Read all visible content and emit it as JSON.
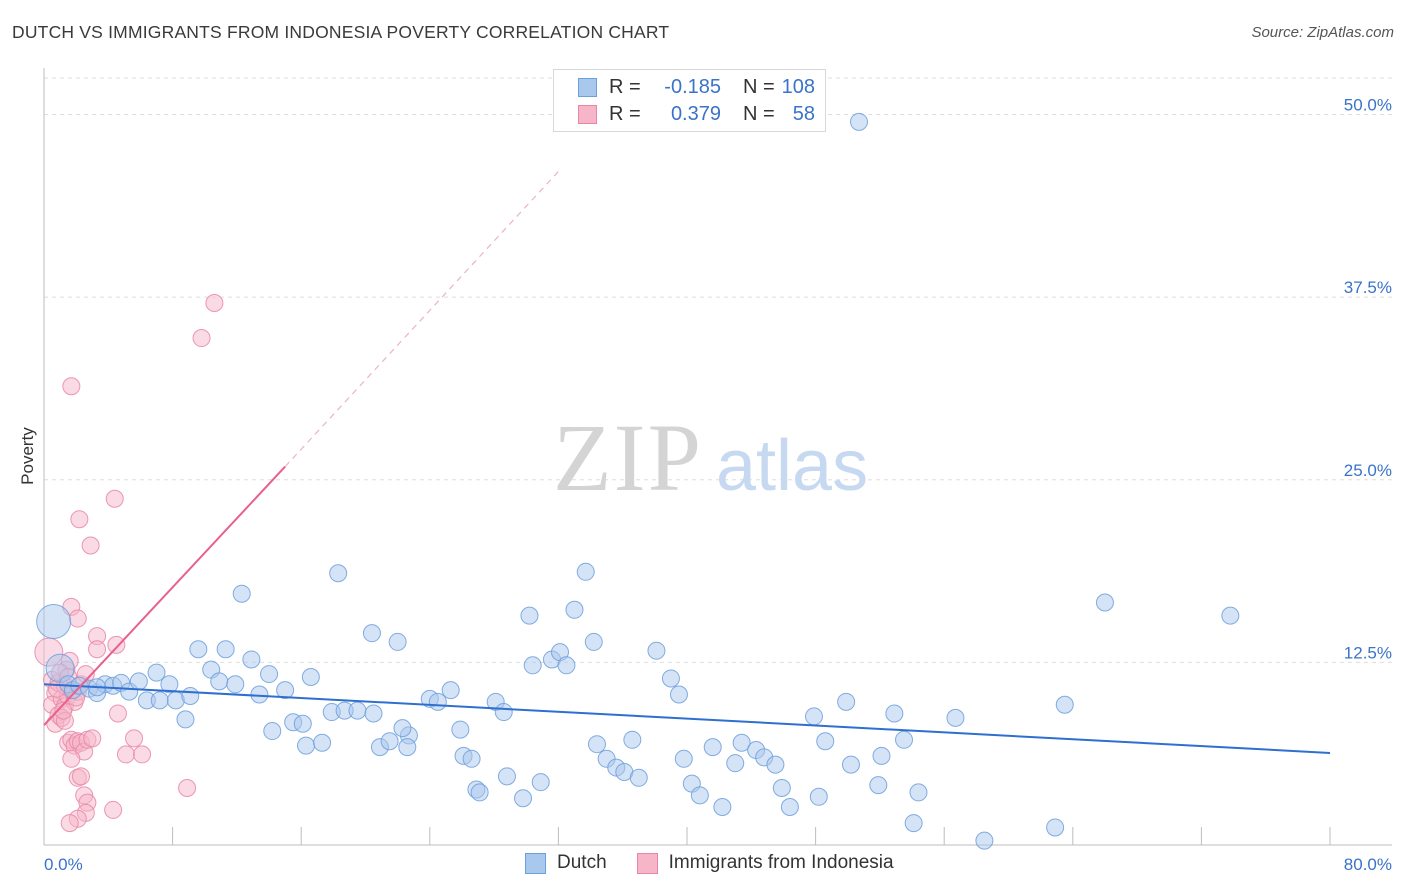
{
  "header": {
    "title": "DUTCH VS IMMIGRANTS FROM INDONESIA POVERTY CORRELATION CHART",
    "source": "Source: ZipAtlas.com"
  },
  "legend": {
    "rows": [
      {
        "r_label": "R =",
        "r_value": "-0.185",
        "n_label": "N =",
        "n_value": "108"
      },
      {
        "r_label": "R =",
        "r_value": "0.379",
        "n_label": "N =",
        "n_value": "58"
      }
    ],
    "series": [
      "Dutch",
      "Immigrants from Indonesia"
    ]
  },
  "colors": {
    "blue_fill": "#a9c8ee",
    "blue_stroke": "#6d9fdc",
    "blue_line": "#2f6fcf",
    "pink_fill": "#f6b5c9",
    "pink_stroke": "#e986a6",
    "pink_line": "#e8608c",
    "axis_text": "#3a73c8"
  },
  "chart_data": {
    "type": "scatter",
    "title": "DUTCH VS IMMIGRANTS FROM INDONESIA POVERTY CORRELATION CHART",
    "xlabel": "",
    "ylabel": "Poverty",
    "xlim": [
      0,
      80
    ],
    "ylim": [
      0,
      52.5
    ],
    "x_tick_labels": [
      "0.0%",
      "80.0%"
    ],
    "y_ticks": [
      12.5,
      25.0,
      37.5,
      50.0
    ],
    "y_tick_labels": [
      "12.5%",
      "25.0%",
      "37.5%",
      "50.0%"
    ],
    "watermark": {
      "zip": "ZIP",
      "atlas": "atlas"
    },
    "series": [
      {
        "name": "Dutch",
        "r": -0.185,
        "n": 108,
        "trend": {
          "x0": 0,
          "y0": 11.0,
          "x1": 80,
          "y1": 6.3
        },
        "points": [
          [
            0.6,
            15.3,
            3
          ],
          [
            1.0,
            12.1,
            2
          ],
          [
            1.5,
            11.0,
            1
          ],
          [
            1.8,
            10.6,
            1
          ],
          [
            2.2,
            10.9,
            1
          ],
          [
            2.8,
            10.7,
            1
          ],
          [
            3.3,
            10.4,
            1
          ],
          [
            3.8,
            11.0,
            1
          ],
          [
            4.3,
            10.9,
            1
          ],
          [
            4.8,
            11.1,
            1
          ],
          [
            5.3,
            10.5,
            1
          ],
          [
            5.9,
            11.2,
            1
          ],
          [
            6.4,
            9.9,
            1
          ],
          [
            7.2,
            9.9,
            1
          ],
          [
            8.2,
            9.9,
            1
          ],
          [
            9.1,
            10.2,
            1
          ],
          [
            3.3,
            10.8,
            1
          ],
          [
            7.0,
            11.8,
            1
          ],
          [
            9.6,
            13.4,
            1
          ],
          [
            10.4,
            12.0,
            1
          ],
          [
            11.3,
            13.4,
            1
          ],
          [
            12.9,
            12.7,
            1
          ],
          [
            14.0,
            11.7,
            1
          ],
          [
            10.9,
            11.2,
            1
          ],
          [
            11.9,
            11.0,
            1
          ],
          [
            13.4,
            10.3,
            1
          ],
          [
            15.0,
            10.6,
            1
          ],
          [
            16.6,
            11.5,
            1
          ],
          [
            7.8,
            11.0,
            1
          ],
          [
            8.8,
            8.6,
            1
          ],
          [
            12.3,
            17.2,
            1
          ],
          [
            14.2,
            7.8,
            1
          ],
          [
            15.5,
            8.4,
            1
          ],
          [
            16.1,
            8.3,
            1
          ],
          [
            16.3,
            6.8,
            1
          ],
          [
            17.3,
            7.0,
            1
          ],
          [
            17.9,
            9.1,
            1
          ],
          [
            18.7,
            9.2,
            1
          ],
          [
            19.5,
            9.2,
            1
          ],
          [
            20.5,
            9.0,
            1
          ],
          [
            20.4,
            14.5,
            1
          ],
          [
            22.0,
            13.9,
            1
          ],
          [
            20.9,
            6.7,
            1
          ],
          [
            21.5,
            7.1,
            1
          ],
          [
            22.7,
            7.5,
            1
          ],
          [
            22.6,
            6.7,
            1
          ],
          [
            22.3,
            8.0,
            1
          ],
          [
            24.0,
            10.0,
            1
          ],
          [
            24.5,
            9.8,
            1
          ],
          [
            25.3,
            10.6,
            1
          ],
          [
            25.9,
            7.9,
            1
          ],
          [
            26.1,
            6.1,
            1
          ],
          [
            26.6,
            5.9,
            1
          ],
          [
            26.9,
            3.8,
            1
          ],
          [
            27.1,
            3.6,
            1
          ],
          [
            28.1,
            9.8,
            1
          ],
          [
            28.6,
            9.1,
            1
          ],
          [
            28.8,
            4.7,
            1
          ],
          [
            29.8,
            3.2,
            1
          ],
          [
            30.2,
            15.7,
            1
          ],
          [
            30.4,
            12.3,
            1
          ],
          [
            30.9,
            4.3,
            1
          ],
          [
            31.6,
            12.7,
            1
          ],
          [
            32.1,
            13.2,
            1
          ],
          [
            32.5,
            12.3,
            1
          ],
          [
            33.0,
            16.1,
            1
          ],
          [
            33.7,
            18.7,
            1
          ],
          [
            34.2,
            13.9,
            1
          ],
          [
            34.4,
            6.9,
            1
          ],
          [
            35.0,
            5.9,
            1
          ],
          [
            35.6,
            5.3,
            1
          ],
          [
            36.1,
            5.0,
            1
          ],
          [
            36.6,
            7.2,
            1
          ],
          [
            37.0,
            4.6,
            1
          ],
          [
            38.1,
            13.3,
            1
          ],
          [
            39.0,
            11.4,
            1
          ],
          [
            39.5,
            10.3,
            1
          ],
          [
            39.8,
            5.9,
            1
          ],
          [
            40.3,
            4.2,
            1
          ],
          [
            40.8,
            3.4,
            1
          ],
          [
            41.6,
            6.7,
            1
          ],
          [
            42.2,
            2.6,
            1
          ],
          [
            43.0,
            5.6,
            1
          ],
          [
            43.4,
            7.0,
            1
          ],
          [
            44.3,
            6.5,
            1
          ],
          [
            44.8,
            6.0,
            1
          ],
          [
            45.5,
            5.5,
            1
          ],
          [
            45.9,
            3.9,
            1
          ],
          [
            46.4,
            2.6,
            1
          ],
          [
            47.9,
            8.8,
            1
          ],
          [
            48.2,
            3.3,
            1
          ],
          [
            48.6,
            7.1,
            1
          ],
          [
            49.9,
            9.8,
            1
          ],
          [
            50.2,
            5.5,
            1
          ],
          [
            51.9,
            4.1,
            1
          ],
          [
            52.1,
            6.1,
            1
          ],
          [
            52.9,
            9.0,
            1
          ],
          [
            53.5,
            7.2,
            1
          ],
          [
            54.1,
            1.5,
            1
          ],
          [
            54.4,
            3.6,
            1
          ],
          [
            56.7,
            8.7,
            1
          ],
          [
            58.5,
            0.3,
            1
          ],
          [
            62.9,
            1.2,
            1
          ],
          [
            63.5,
            9.6,
            1
          ],
          [
            66.0,
            16.6,
            1
          ],
          [
            73.8,
            15.7,
            1
          ],
          [
            50.7,
            49.5,
            1
          ],
          [
            18.3,
            18.6,
            1
          ]
        ]
      },
      {
        "name": "Immigrants from Indonesia",
        "r": 0.379,
        "n": 58,
        "trend": {
          "x0": 0,
          "y0": 8.2,
          "x1": 15,
          "y1": 25.9,
          "dash_x1": 32,
          "dash_y1": 46.1
        },
        "points": [
          [
            0.3,
            13.2,
            2
          ],
          [
            0.5,
            11.3,
            1
          ],
          [
            0.7,
            10.4,
            1
          ],
          [
            0.9,
            11.1,
            1
          ],
          [
            0.5,
            9.6,
            1
          ],
          [
            0.9,
            8.9,
            1
          ],
          [
            1.1,
            10.0,
            1
          ],
          [
            1.3,
            9.5,
            1
          ],
          [
            1.5,
            10.2,
            1
          ],
          [
            1.7,
            10.6,
            1
          ],
          [
            1.9,
            9.8,
            1
          ],
          [
            2.1,
            10.5,
            1
          ],
          [
            2.3,
            11.0,
            1
          ],
          [
            0.7,
            8.3,
            1
          ],
          [
            1.1,
            8.7,
            1
          ],
          [
            1.3,
            8.5,
            1
          ],
          [
            1.5,
            7.0,
            1
          ],
          [
            1.7,
            7.2,
            1
          ],
          [
            1.9,
            6.8,
            1
          ],
          [
            2.1,
            7.1,
            1
          ],
          [
            2.3,
            7.0,
            1
          ],
          [
            2.5,
            6.4,
            1
          ],
          [
            2.7,
            7.2,
            1
          ],
          [
            3.0,
            7.3,
            1
          ],
          [
            1.7,
            5.9,
            1
          ],
          [
            2.1,
            4.6,
            1
          ],
          [
            2.3,
            4.7,
            1
          ],
          [
            2.5,
            3.4,
            1
          ],
          [
            2.7,
            2.9,
            1
          ],
          [
            2.6,
            2.2,
            1
          ],
          [
            2.1,
            1.8,
            1
          ],
          [
            1.6,
            1.5,
            1
          ],
          [
            1.4,
            12.0,
            1
          ],
          [
            1.6,
            12.6,
            1
          ],
          [
            1.7,
            16.3,
            1
          ],
          [
            2.1,
            15.5,
            1
          ],
          [
            2.2,
            22.3,
            1
          ],
          [
            2.9,
            20.5,
            1
          ],
          [
            3.3,
            14.3,
            1
          ],
          [
            3.3,
            13.4,
            1
          ],
          [
            4.5,
            13.7,
            1
          ],
          [
            4.6,
            9.0,
            1
          ],
          [
            5.1,
            6.2,
            1
          ],
          [
            5.6,
            7.3,
            1
          ],
          [
            6.1,
            6.2,
            1
          ],
          [
            4.3,
            2.4,
            1
          ],
          [
            8.9,
            3.9,
            1
          ],
          [
            9.8,
            34.7,
            1
          ],
          [
            10.6,
            37.1,
            1
          ],
          [
            1.7,
            31.4,
            1
          ],
          [
            4.4,
            23.7,
            1
          ],
          [
            1.0,
            11.8,
            1
          ],
          [
            1.3,
            10.9,
            1
          ],
          [
            1.5,
            11.5,
            1
          ],
          [
            2.0,
            10.1,
            1
          ],
          [
            1.2,
            9.2,
            1
          ],
          [
            0.8,
            10.7,
            1
          ],
          [
            2.6,
            11.7,
            1
          ]
        ]
      }
    ]
  }
}
